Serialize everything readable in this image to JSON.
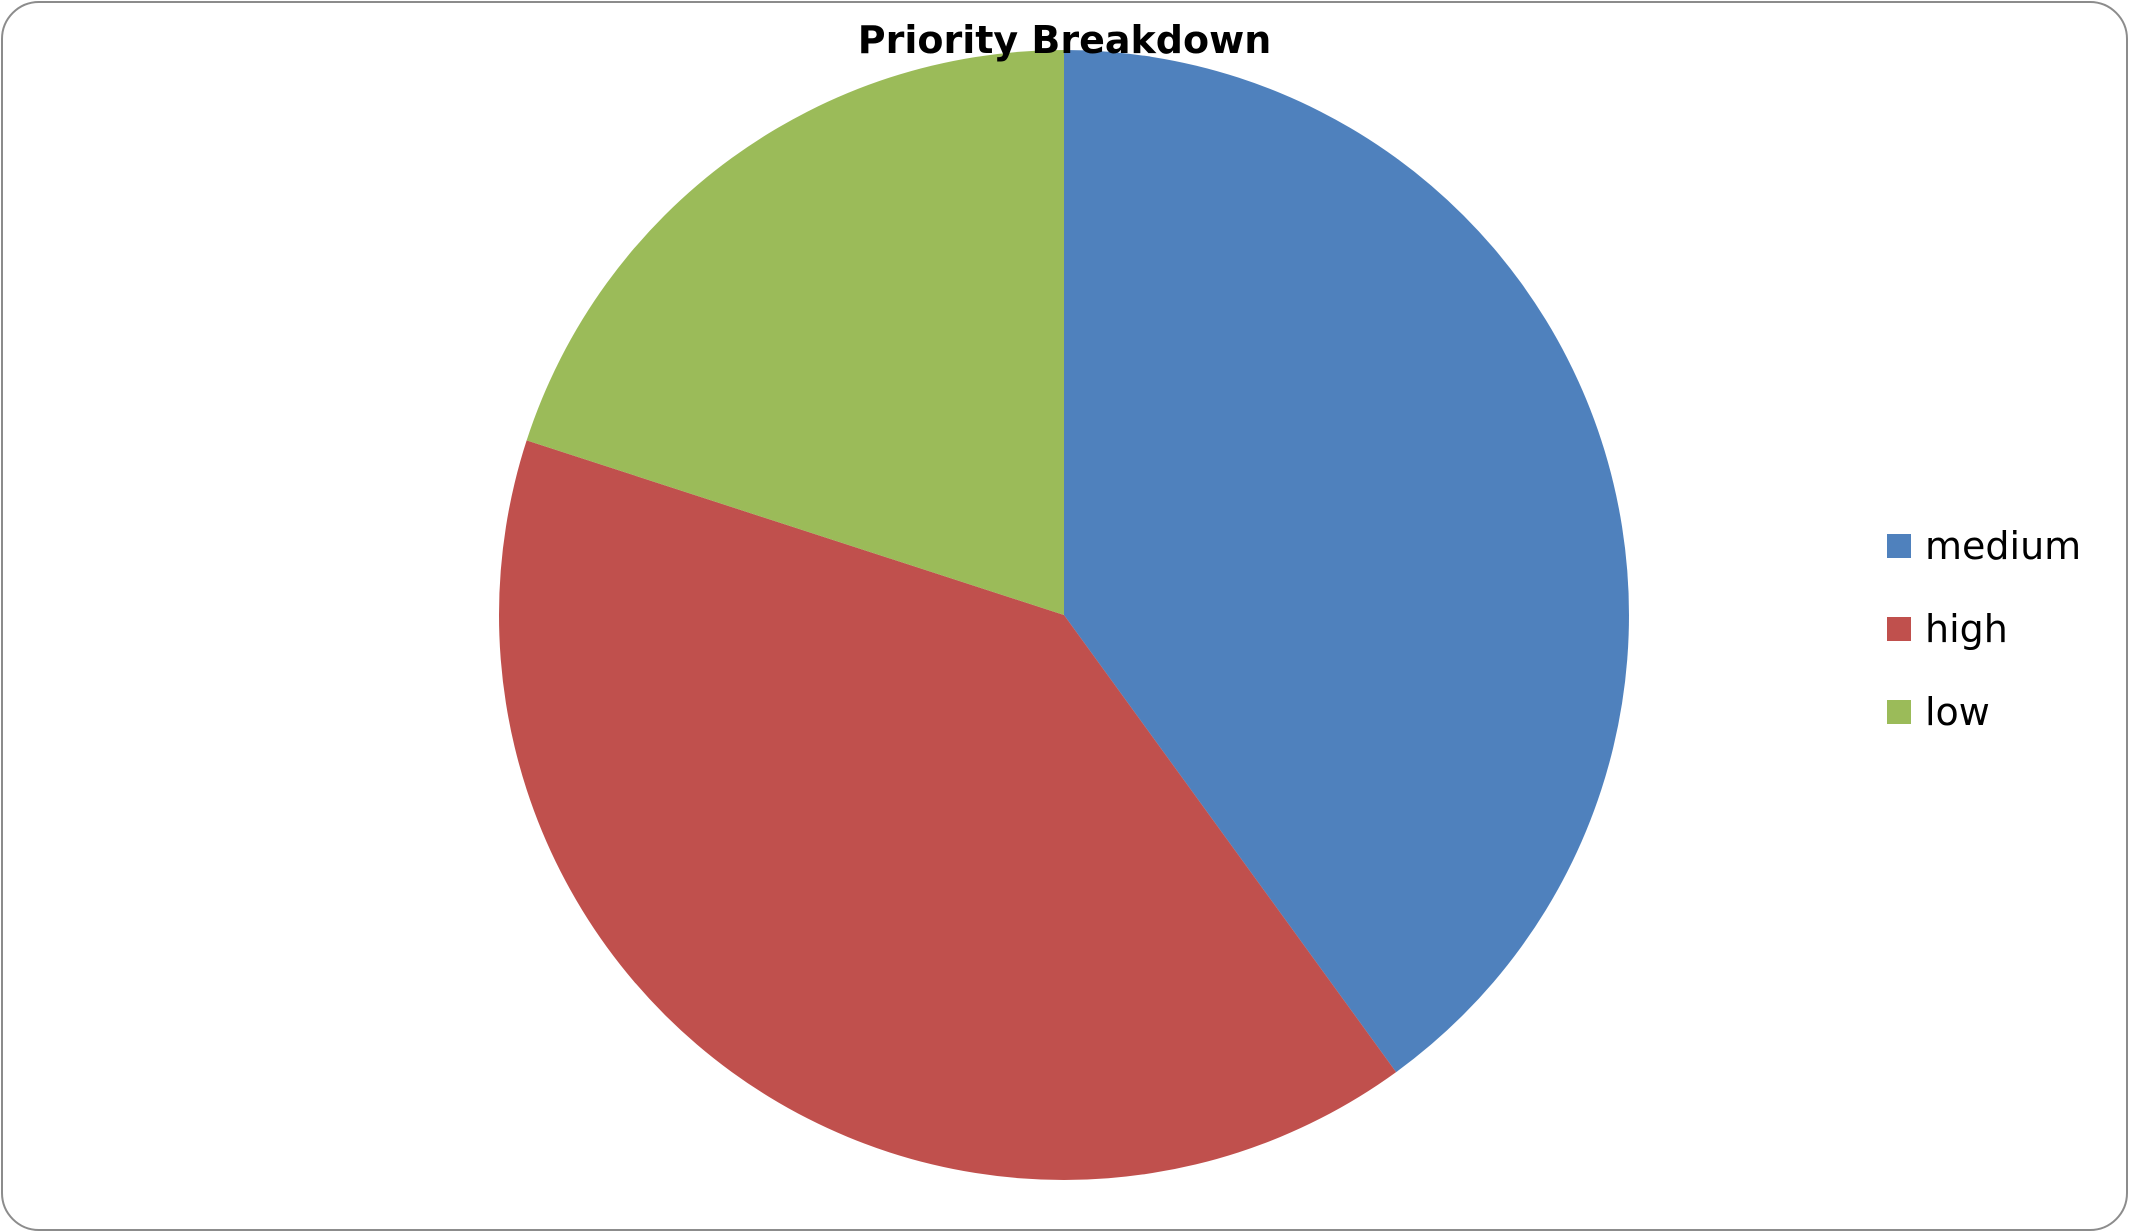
{
  "chart_data": {
    "type": "pie",
    "title": "Priority Breakdown",
    "categories": [
      "medium",
      "high",
      "low"
    ],
    "values": [
      40,
      40,
      20
    ],
    "colors": [
      "#4f81bd",
      "#c0504d",
      "#9bbb59"
    ],
    "legend_position": "right",
    "start_angle_deg": 0,
    "direction": "clockwise"
  }
}
